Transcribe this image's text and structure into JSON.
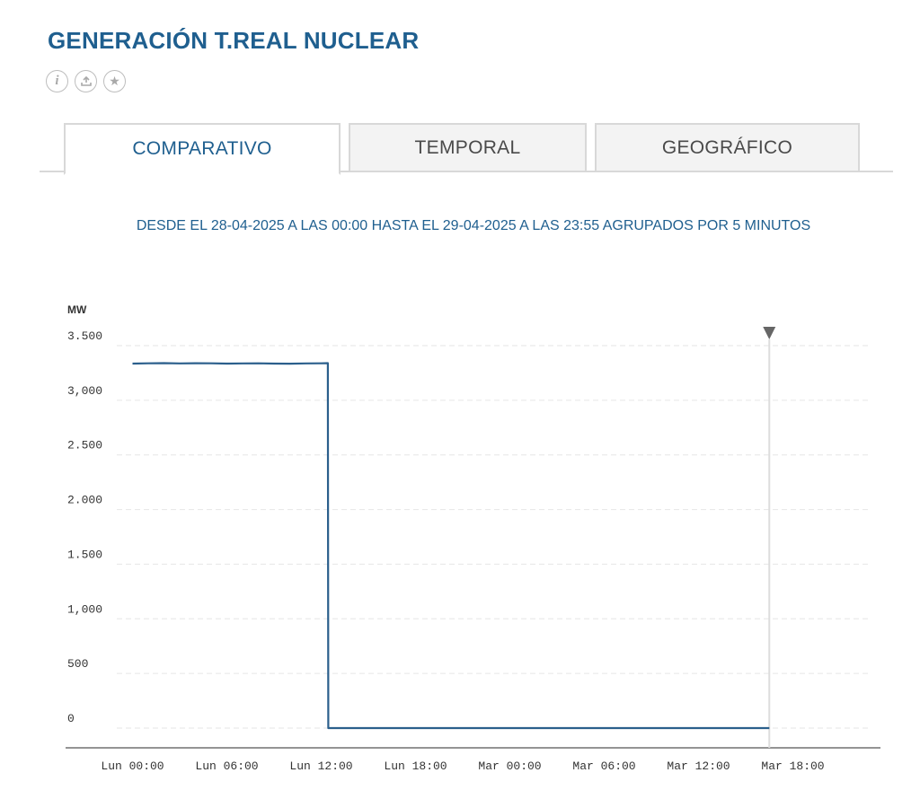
{
  "page": {
    "title": "GENERACIÓN T.REAL NUCLEAR",
    "icons": [
      "info-icon",
      "download-icon",
      "star-icon"
    ],
    "icon_glyphs": {
      "info": "i",
      "star": "★"
    },
    "tabs": [
      {
        "label": "COMPARATIVO",
        "active": true
      },
      {
        "label": "TEMPORAL",
        "active": false
      },
      {
        "label": "GEOGRÁFICO",
        "active": false
      }
    ],
    "subtitle": "DESDE EL 28-04-2025 A LAS 00:00 HASTA EL 29-04-2025 A LAS 23:55 AGRUPADOS POR 5 MINUTOS"
  },
  "colors": {
    "accent": "#1f5f8f",
    "line": "#2b5f8c",
    "grid": "#e6e6e6",
    "marker": "#666666"
  },
  "chart_data": {
    "type": "line",
    "ylabel": "MW",
    "ylim": [
      0,
      3500
    ],
    "yticks": [
      3500,
      3000,
      2500,
      2000,
      1500,
      1000,
      500,
      0
    ],
    "ytick_labels": [
      "3.500",
      "3,000",
      "2.500",
      "2.000",
      "1.500",
      "1,000",
      "500",
      "0"
    ],
    "xlim": [
      0,
      47.92
    ],
    "xticks": [
      0,
      6,
      12,
      18,
      24,
      30,
      36,
      42
    ],
    "xtick_labels": [
      "Lun 00:00",
      "Lun 06:00",
      "Lun 12:00",
      "Lun 18:00",
      "Mar 00:00",
      "Mar 06:00",
      "Mar 12:00",
      "Mar 18:00"
    ],
    "grid": true,
    "marker_at_x": 40.5,
    "series": [
      {
        "x": [
          0,
          1,
          2,
          3,
          4,
          5,
          6,
          7,
          8,
          9,
          10,
          11,
          12.0,
          12.42,
          12.45,
          12.6,
          18,
          24,
          30,
          36,
          40.5
        ],
        "values": [
          3336,
          3338,
          3340,
          3337,
          3339,
          3338,
          3336,
          3337,
          3338,
          3336,
          3335,
          3337,
          3338,
          3340,
          0,
          0,
          0,
          0,
          0,
          0,
          0
        ]
      }
    ]
  }
}
